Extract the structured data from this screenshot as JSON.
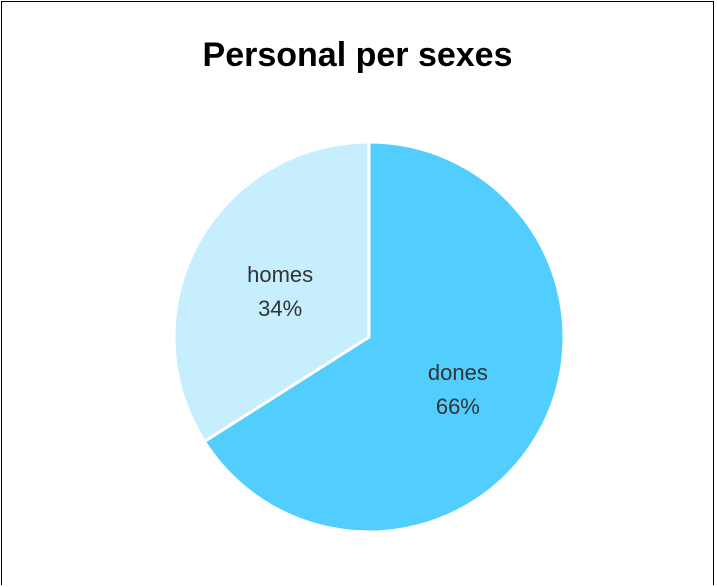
{
  "chart_data": {
    "type": "pie",
    "title": "Personal per sexes",
    "slices": [
      {
        "label": "dones",
        "percent_label": "66%",
        "value": 66,
        "color": "#52cefe"
      },
      {
        "label": "homes",
        "percent_label": "34%",
        "value": 34,
        "color": "#c6eefd"
      }
    ],
    "start_angle_deg": 0,
    "direction": "clockwise",
    "slice_border_color": "#ffffff"
  }
}
